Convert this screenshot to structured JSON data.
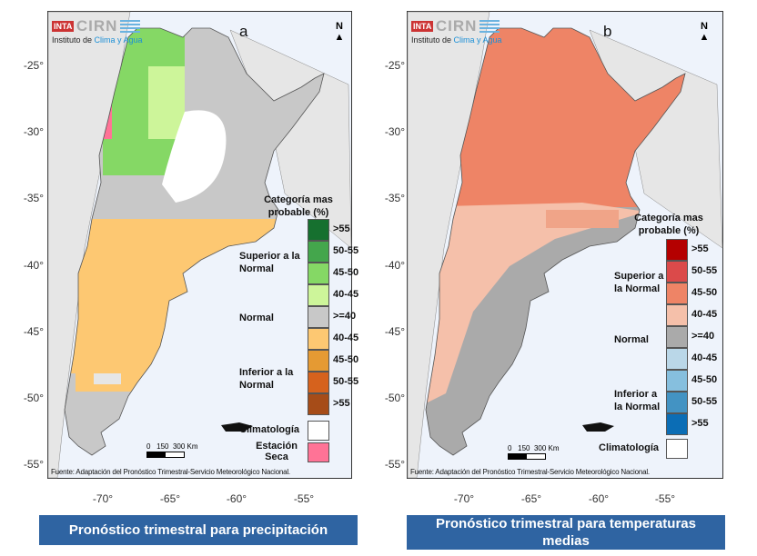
{
  "logo": {
    "inta": "INTA",
    "cirn": "CIRN",
    "subtitle_prefix": "Instituto de ",
    "subtitle_highlight": "Clima y Agua"
  },
  "north_label": "N",
  "latitude_ticks": [
    "-25°",
    "-30°",
    "-35°",
    "-40°",
    "-45°",
    "-50°",
    "-55°"
  ],
  "longitude_ticks": [
    "-70°",
    "-65°",
    "-60°",
    "-55°"
  ],
  "scale_bar": {
    "labels": [
      "0",
      "150",
      "300 Km"
    ]
  },
  "source": "Fuente: Adaptación del Pronóstico Trimestral-Servicio Meteorológico Nacional.",
  "maps": [
    {
      "letter": "a",
      "caption": "Pronóstico trimestral para precipitación",
      "legend": {
        "title": "Categoría mas probable (%)",
        "groups": {
          "superior": "Superior a la Normal",
          "normal": "Normal",
          "inferior": "Inferior a la Normal"
        },
        "items": [
          {
            "label": ">55",
            "color": "#16702f"
          },
          {
            "label": "50-55",
            "color": "#44a64c"
          },
          {
            "label": "45-50",
            "color": "#85d865"
          },
          {
            "label": "40-45",
            "color": "#cdf59a"
          },
          {
            "label": ">=40",
            "color": "#c8c8c8"
          },
          {
            "label": "40-45",
            "color": "#fdc872"
          },
          {
            "label": "45-50",
            "color": "#e59a33"
          },
          {
            "label": "50-55",
            "color": "#d6621d"
          },
          {
            "label": ">55",
            "color": "#a64c18"
          }
        ],
        "extra": [
          {
            "label": "Climatología",
            "color": "#ffffff"
          },
          {
            "label": "Estación Seca",
            "color": "#ff7396"
          }
        ]
      }
    },
    {
      "letter": "b",
      "caption": "Pronóstico trimestral para temperaturas medias",
      "legend": {
        "title": "Categoría mas probable (%)",
        "groups": {
          "superior": "Superior a la Normal",
          "normal": "Normal",
          "inferior": "Inferior a la Normal"
        },
        "items": [
          {
            "label": ">55",
            "color": "#b40000"
          },
          {
            "label": "50-55",
            "color": "#db4a4a"
          },
          {
            "label": "45-50",
            "color": "#ee8466"
          },
          {
            "label": "40-45",
            "color": "#f5c0aa"
          },
          {
            "label": ">=40",
            "color": "#aaaaaa"
          },
          {
            "label": "40-45",
            "color": "#bad7e8"
          },
          {
            "label": "45-50",
            "color": "#86bfde"
          },
          {
            "label": "50-55",
            "color": "#4393c3"
          },
          {
            "label": ">55",
            "color": "#0b6db5"
          }
        ],
        "extra": [
          {
            "label": "Climatología",
            "color": "#ffffff"
          }
        ]
      }
    }
  ]
}
